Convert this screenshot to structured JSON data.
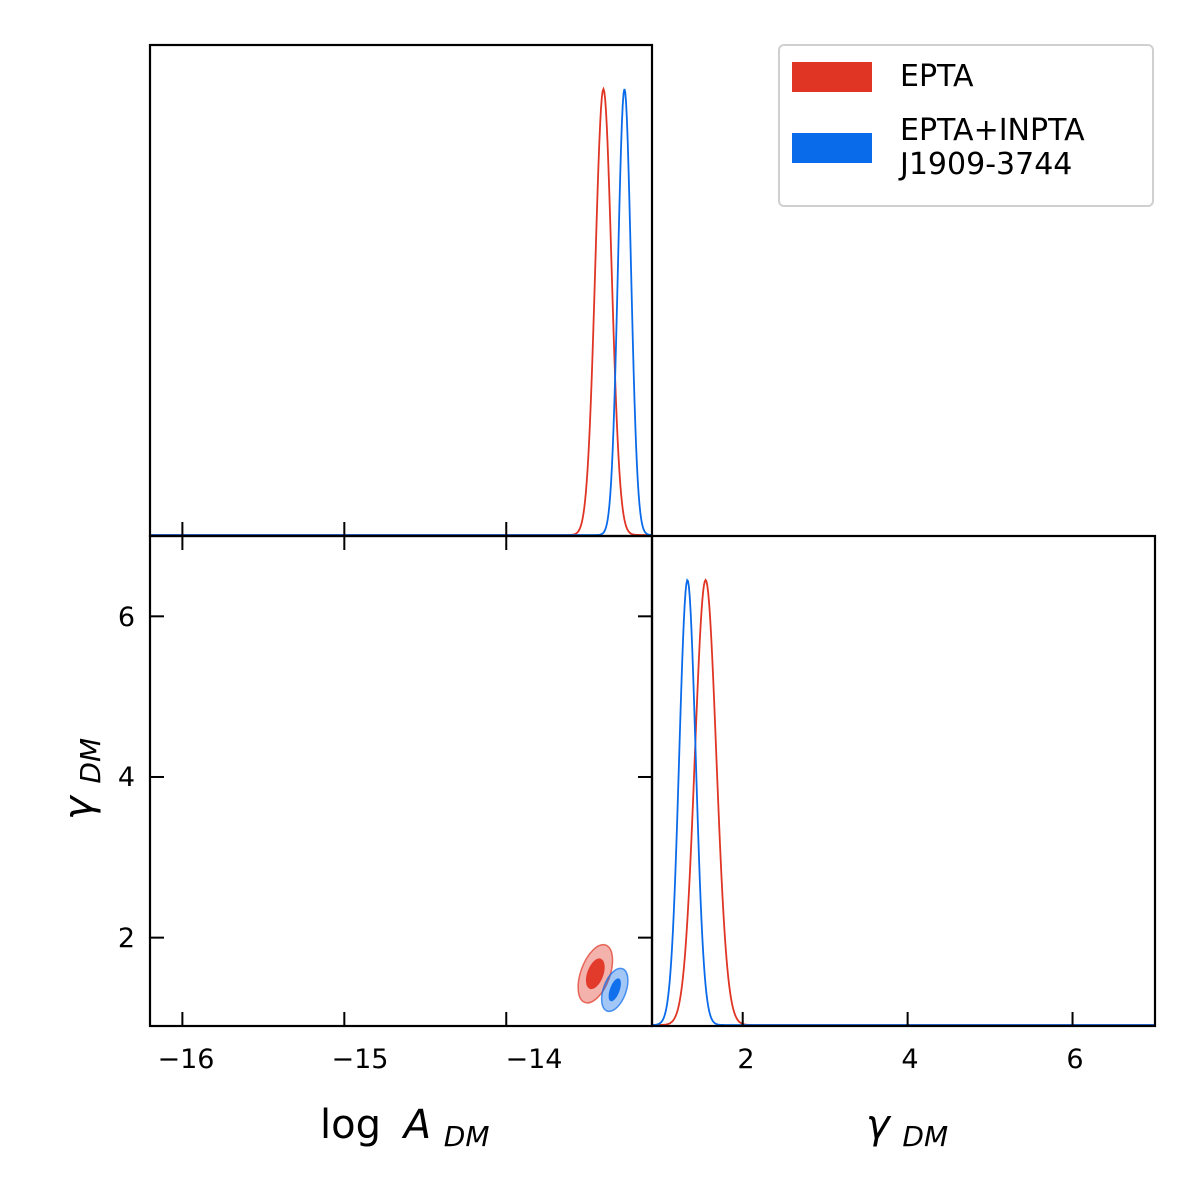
{
  "chart_data": {
    "type": "corner",
    "parameters": [
      {
        "name": "logA",
        "label": "log A",
        "label_sub": "DM",
        "range": [
          -16.2,
          -13.1
        ],
        "ticks": [
          -16,
          -15,
          -14
        ]
      },
      {
        "name": "gamma",
        "label": "γ",
        "label_sub": "DM",
        "range": [
          0.9,
          7.0
        ],
        "ticks": [
          2,
          4,
          6
        ]
      }
    ],
    "series": [
      {
        "name": "EPTA",
        "color": "#e03524",
        "logA_peak": -13.4,
        "logA_sigma": 0.05,
        "gamma_peak": 1.55,
        "gamma_sigma": 0.13,
        "contour_center": [
          -13.45,
          1.55
        ],
        "contour_rx_68": 0.05,
        "contour_ry_68": 0.2,
        "contour_rx_95": 0.09,
        "contour_ry_95": 0.38
      },
      {
        "name": "EPTA+INPTA\nJ1909-3744",
        "color": "#0a6bea",
        "logA_peak": -13.27,
        "logA_sigma": 0.04,
        "gamma_peak": 1.33,
        "gamma_sigma": 0.1,
        "contour_center": [
          -13.33,
          1.35
        ],
        "contour_rx_68": 0.03,
        "contour_ry_68": 0.15,
        "contour_rx_95": 0.07,
        "contour_ry_95": 0.28
      }
    ],
    "legend_position": "top-right",
    "grid": false
  },
  "axis_labels": {
    "x_left_main": "log",
    "x_left_var": "A",
    "x_left_sub": "DM",
    "x_right_var": "γ",
    "x_right_sub": "DM",
    "y_var": "γ",
    "y_sub": "DM"
  },
  "tick_labels": {
    "logA": [
      "−16",
      "−15",
      "−14"
    ],
    "gamma_x": [
      "2",
      "4",
      "6"
    ],
    "gamma_y": [
      "6",
      "4",
      "2"
    ]
  },
  "legend": {
    "items": [
      {
        "label": "EPTA",
        "color": "#e03524"
      },
      {
        "label": "EPTA+INPTA\nJ1909-3744",
        "color": "#0a6bea"
      }
    ]
  }
}
